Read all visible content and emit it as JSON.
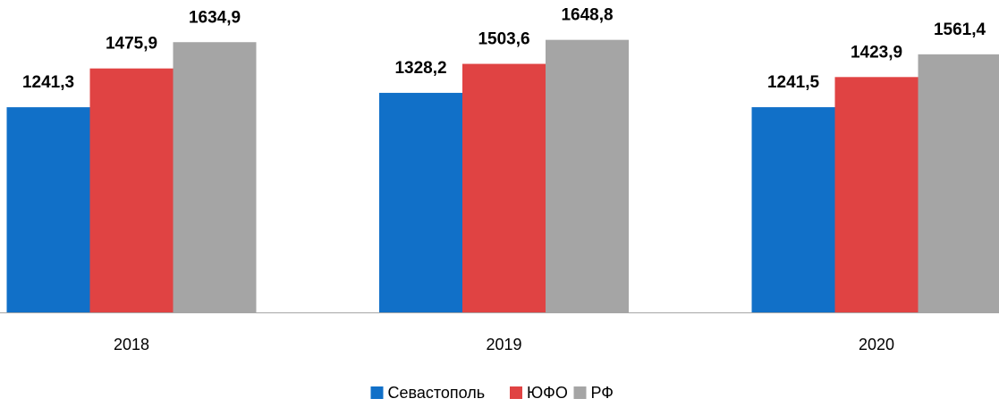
{
  "chart_data": {
    "type": "bar",
    "categories": [
      "2018",
      "2019",
      "2020"
    ],
    "series": [
      {
        "name": "Севастополь",
        "color": "#1170c8",
        "values": [
          1241.3,
          1328.2,
          1241.5
        ],
        "value_labels": [
          "1241,3",
          "1328,2",
          "1241,5"
        ]
      },
      {
        "name": "ЮФО",
        "color": "#e04343",
        "values": [
          1475.9,
          1503.6,
          1423.9
        ],
        "value_labels": [
          "1475,9",
          "1503,6",
          "1423,9"
        ]
      },
      {
        "name": "РФ",
        "color": "#a5a5a5",
        "values": [
          1634.9,
          1648.8,
          1561.4
        ],
        "value_labels": [
          "1634,9",
          "1648,8",
          "1561,4"
        ]
      }
    ],
    "ylim": [
      0,
      1890
    ],
    "legend": "bottom"
  }
}
